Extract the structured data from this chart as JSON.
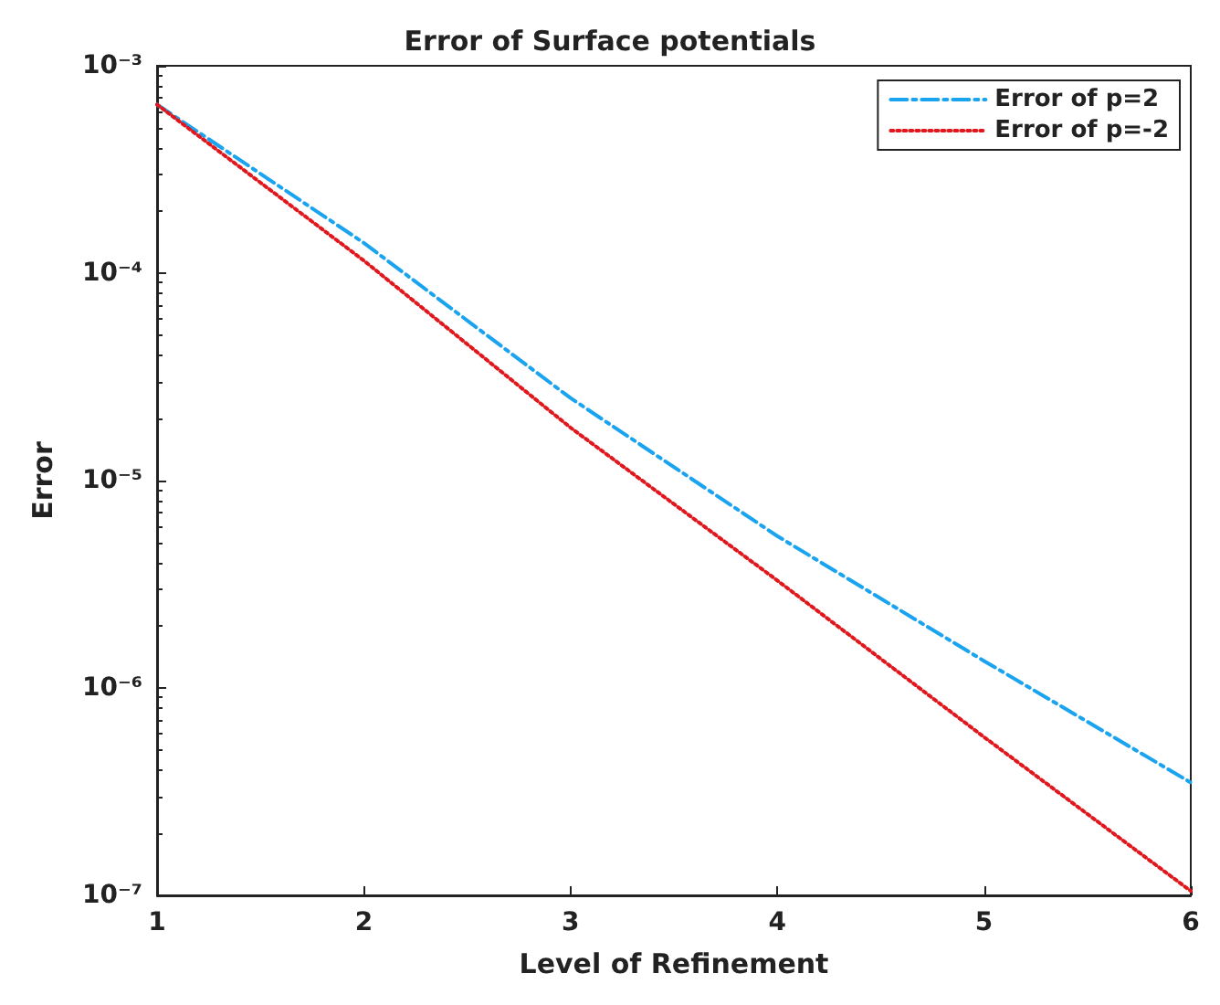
{
  "chart_data": {
    "type": "line",
    "title": "Error of Surface potentials",
    "xlabel": "Level of Refinement",
    "ylabel": "Error",
    "x": [
      1,
      2,
      3,
      4,
      5,
      6
    ],
    "series": [
      {
        "name": "Error of p=2",
        "color": "#1aa3ef",
        "line_style": "dashed",
        "values": [
          0.00065,
          0.00014,
          2.5e-05,
          5.4e-06,
          1.35e-06,
          3.5e-07
        ]
      },
      {
        "name": "Error of p=-2",
        "color": "#e0171c",
        "line_style": "dotted",
        "values": [
          0.00065,
          0.000115,
          1.8e-05,
          3.3e-06,
          5.8e-07,
          1.05e-07
        ]
      }
    ],
    "log": "y",
    "xlim": [
      1,
      6
    ],
    "xticks": [
      1,
      2,
      3,
      4,
      5,
      6
    ],
    "ylim": [
      1e-07,
      0.001
    ],
    "yticks": [
      {
        "value": 1e-07,
        "label": "10⁻⁷"
      },
      {
        "value": 1e-06,
        "label": "10⁻⁶"
      },
      {
        "value": 1e-05,
        "label": "10⁻⁵"
      },
      {
        "value": 0.0001,
        "label": "10⁻⁴"
      },
      {
        "value": 0.001,
        "label": "10⁻³"
      }
    ],
    "grid": false,
    "legend": "top right",
    "marker": "none"
  }
}
